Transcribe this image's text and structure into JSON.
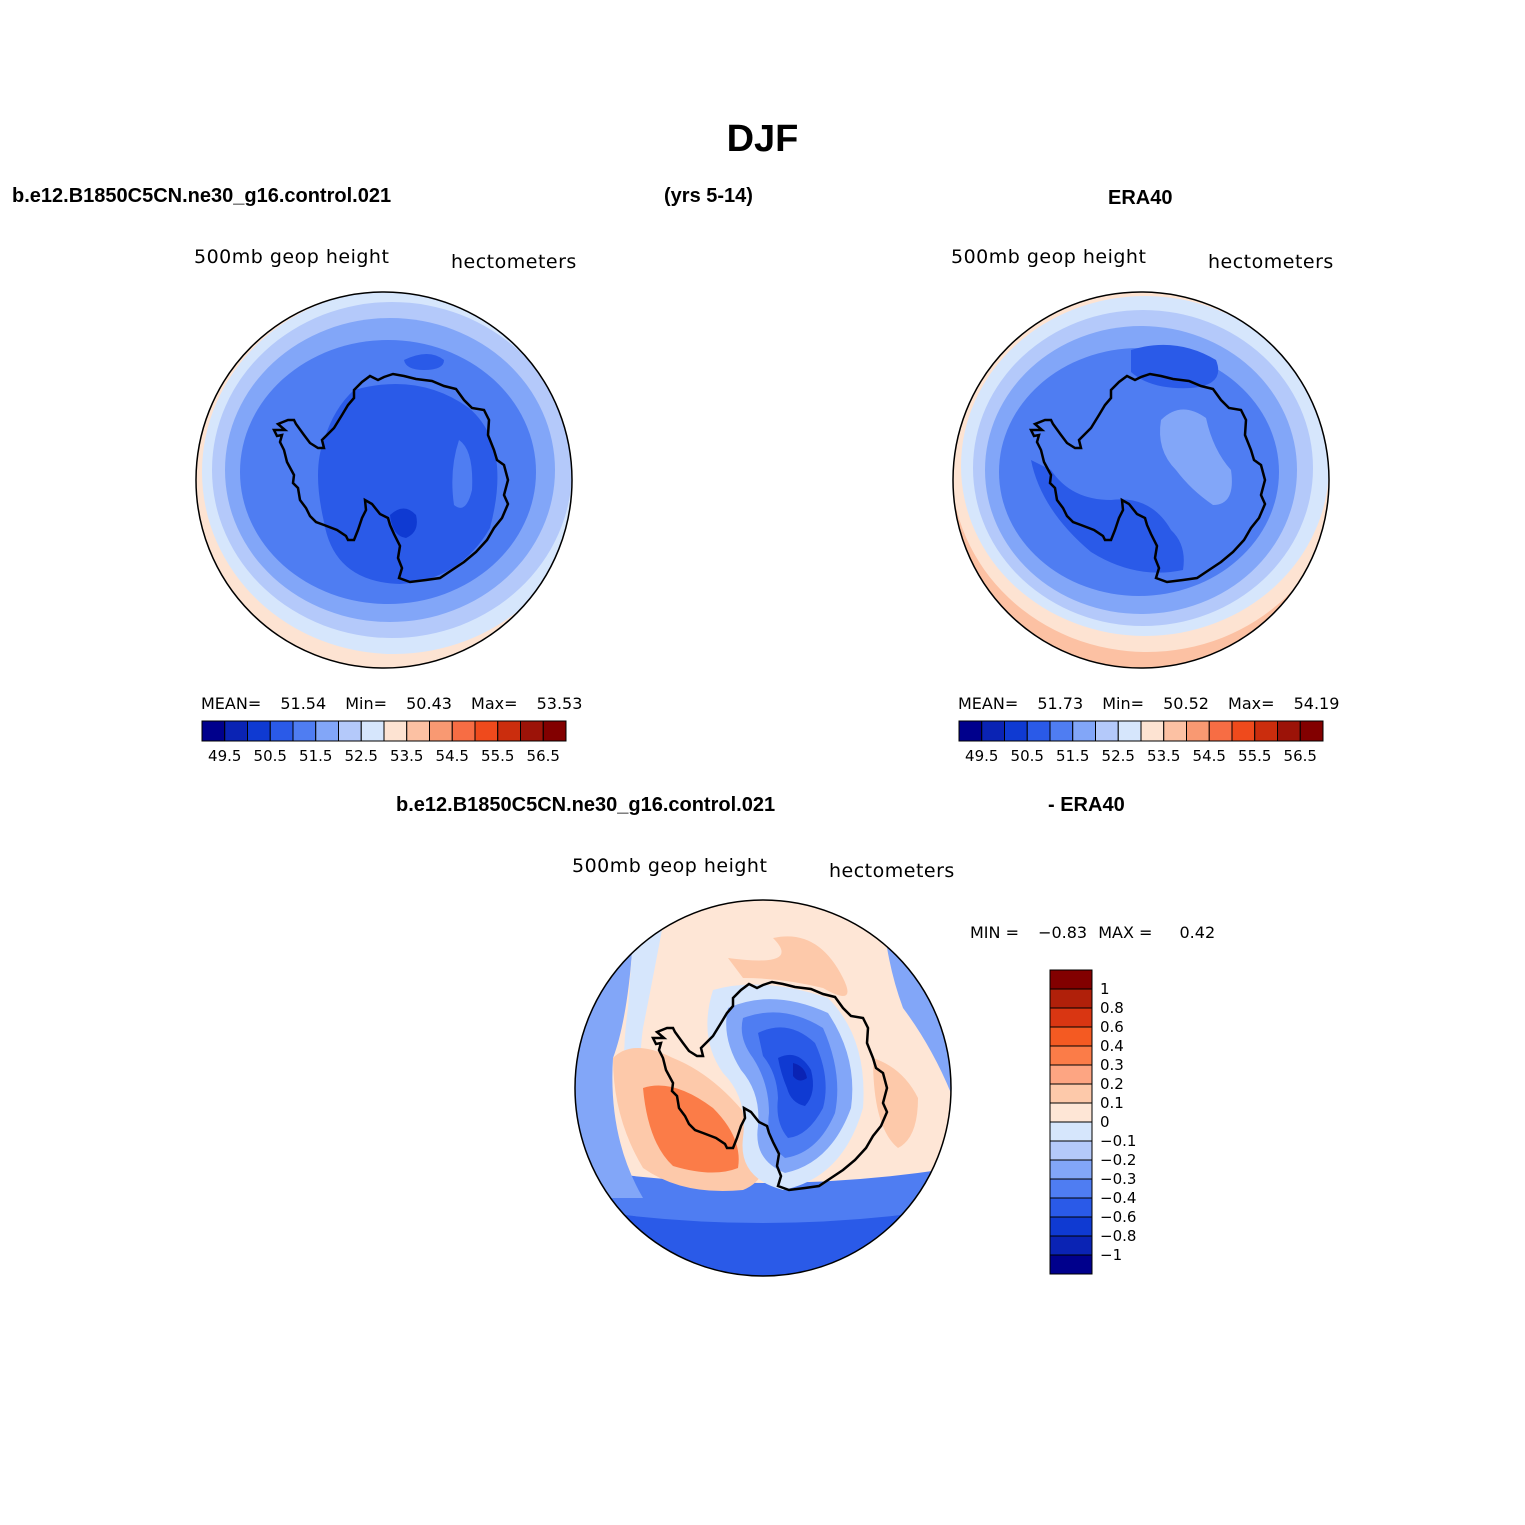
{
  "title": "DJF",
  "top_left": {
    "case_name": "b.e12.B1850C5CN.ne30_g16.control.021",
    "years": "(yrs 5-14)",
    "variable": "500mb geop height",
    "units": "hectometers",
    "stats": {
      "mean_label": "MEAN=",
      "mean": "51.54",
      "min_label": "Min=",
      "min": "50.43",
      "max_label": "Max=",
      "max": "53.53"
    }
  },
  "top_right": {
    "case_name": "ERA40",
    "variable": "500mb geop height",
    "units": "hectometers",
    "stats": {
      "mean_label": "MEAN=",
      "mean": "51.73",
      "min_label": "Min=",
      "min": "50.52",
      "max_label": "Max=",
      "max": "54.19"
    }
  },
  "bottom": {
    "case_name": "b.e12.B1850C5CN.ne30_g16.control.021",
    "minus_label": "- ERA40",
    "variable": "500mb geop height",
    "units": "hectometers",
    "stats": {
      "min_label": "MIN =",
      "min": "−0.83",
      "max_label": "MAX =",
      "max": "0.42"
    }
  },
  "abs_colorbar": {
    "colors": [
      "#00008c",
      "#0a23b4",
      "#0f3ad2",
      "#2a5ae8",
      "#4f7df2",
      "#82a6f8",
      "#b4c9fa",
      "#d6e6fc",
      "#fde3d2",
      "#fcc1a3",
      "#f99972",
      "#f76d44",
      "#ef4a1c",
      "#cb2d0d",
      "#9c1308",
      "#820000"
    ],
    "labels": [
      "49.5",
      "50.5",
      "51.5",
      "52.5",
      "53.5",
      "54.5",
      "55.5",
      "56.5"
    ]
  },
  "diff_colorbar": {
    "colors_top_to_bottom": [
      "#820000",
      "#b0200a",
      "#d93612",
      "#f45a22",
      "#fb7c48",
      "#fda582",
      "#fdc9aa",
      "#fee6d6",
      "#d6e6fc",
      "#b4c9fa",
      "#82a6f8",
      "#4f7df2",
      "#2a5ae8",
      "#0f3ad2",
      "#0a23b4",
      "#00008c"
    ],
    "labels": [
      "1",
      "0.8",
      "0.6",
      "0.4",
      "0.3",
      "0.2",
      "0.1",
      "0",
      "−0.1",
      "−0.2",
      "−0.3",
      "−0.4",
      "−0.6",
      "−0.8",
      "−1"
    ]
  },
  "map_layers": {
    "model": [
      {
        "color": "#fde3d2"
      },
      {
        "color": "#d6e6fc"
      },
      {
        "color": "#b4c9fa"
      },
      {
        "color": "#82a6f8"
      },
      {
        "color": "#4f7df2"
      },
      {
        "color": "#2a5ae8"
      },
      {
        "color": "#0f3ad2"
      }
    ],
    "era40": [
      {
        "color": "#fcc1a3"
      },
      {
        "color": "#fde3d2"
      },
      {
        "color": "#d6e6fc"
      },
      {
        "color": "#b4c9fa"
      },
      {
        "color": "#82a6f8"
      },
      {
        "color": "#4f7df2"
      },
      {
        "color": "#2a5ae8"
      }
    ],
    "diff": [
      {
        "color": "#2a5ae8"
      },
      {
        "color": "#4f7df2"
      },
      {
        "color": "#82a6f8"
      },
      {
        "color": "#d6e6fc"
      },
      {
        "color": "#fee6d6"
      },
      {
        "color": "#fdc9aa"
      },
      {
        "color": "#fb7c48"
      }
    ]
  }
}
